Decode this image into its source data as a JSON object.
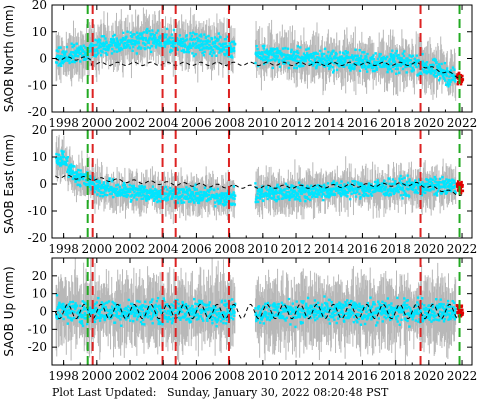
{
  "footer": {
    "label": "Plot Last Updated:",
    "timestamp": "Sunday, January 30, 2022 08:20:48 PST"
  },
  "colors": {
    "data": "#00e5ff",
    "error_bars": "#b8b8b8",
    "model": "#000000",
    "recent": "#e00000",
    "red_lines": "#dd2222",
    "green_lines": "#22aa22"
  },
  "chart_data": [
    {
      "type": "scatter",
      "ylabel": "SAOB North (mm)",
      "xlim": [
        1997.3,
        2022.6
      ],
      "ylim": [
        -20,
        20
      ],
      "yticks": [
        -20,
        -10,
        0,
        10,
        20
      ],
      "xticks": [
        "1998",
        "2000",
        "2002",
        "2004",
        "2006",
        "2008",
        "2010",
        "2012",
        "2014",
        "2016",
        "2018",
        "2020",
        "2022"
      ],
      "model_trend": [
        [
          1997.5,
          0
        ],
        [
          1999.6,
          0
        ],
        [
          1999.7,
          -2
        ],
        [
          2008.3,
          -2
        ],
        [
          2019.3,
          -2
        ],
        [
          2022.0,
          -7
        ]
      ],
      "data_trend": [
        [
          1998.0,
          0
        ],
        [
          1999.6,
          3
        ],
        [
          2000.5,
          5
        ],
        [
          2003.0,
          7
        ],
        [
          2005.0,
          6
        ],
        [
          2007.0,
          5
        ],
        [
          2008.3,
          4
        ],
        [
          2009.5,
          2
        ],
        [
          2012.0,
          0
        ],
        [
          2016.0,
          -1
        ],
        [
          2019.3,
          -2
        ],
        [
          2022.0,
          -8
        ]
      ],
      "scatter": 3.5,
      "error_spread": 6,
      "red_lines": [
        1999.75,
        2003.96,
        2004.75,
        2007.96,
        2019.5
      ],
      "green_lines": [
        1999.45,
        2021.85
      ]
    },
    {
      "type": "scatter",
      "ylabel": "SAOB East (mm)",
      "xlim": [
        1997.3,
        2022.6
      ],
      "ylim": [
        -20,
        20
      ],
      "yticks": [
        -20,
        -10,
        0,
        10,
        20
      ],
      "xticks": [
        "1998",
        "2000",
        "2002",
        "2004",
        "2006",
        "2008",
        "2010",
        "2012",
        "2014",
        "2016",
        "2018",
        "2020",
        "2022"
      ],
      "model_trend": [
        [
          1997.5,
          3
        ],
        [
          1999.6,
          2
        ],
        [
          2002.0,
          1
        ],
        [
          2005.0,
          0
        ],
        [
          2008.3,
          -1
        ],
        [
          2013.0,
          -1
        ],
        [
          2019.3,
          0
        ],
        [
          2022.0,
          -4
        ]
      ],
      "data_trend": [
        [
          1998.0,
          9
        ],
        [
          1998.6,
          4
        ],
        [
          2000.0,
          -1
        ],
        [
          2002.0,
          -3
        ],
        [
          2005.0,
          -4
        ],
        [
          2008.3,
          -5
        ],
        [
          2009.3,
          -4
        ],
        [
          2012.0,
          -3
        ],
        [
          2015.0,
          -2
        ],
        [
          2019.3,
          -1
        ],
        [
          2022.0,
          -1
        ]
      ],
      "scatter": 3,
      "error_spread": 5,
      "red_lines": [
        1999.75,
        2003.96,
        2004.75,
        2007.96,
        2019.5
      ],
      "green_lines": [
        1999.45,
        2021.85
      ]
    },
    {
      "type": "scatter",
      "ylabel": "SAOB Up (mm)",
      "xlim": [
        1997.3,
        2022.6
      ],
      "ylim": [
        -30,
        30
      ],
      "yticks": [
        -20,
        -10,
        0,
        10,
        20
      ],
      "xticks": [
        "1998",
        "2000",
        "2002",
        "2004",
        "2006",
        "2008",
        "2010",
        "2012",
        "2014",
        "2016",
        "2018",
        "2020",
        "2022"
      ],
      "model_trend": [
        [
          1997.5,
          0
        ],
        [
          2022.0,
          0
        ]
      ],
      "data_trend": [
        [
          1998.0,
          0
        ],
        [
          2022.0,
          0
        ]
      ],
      "scatter": 6,
      "error_spread": 14,
      "red_lines": [
        1999.75,
        2003.96,
        2004.75,
        2007.96,
        2019.5
      ],
      "green_lines": [
        1999.45,
        2021.85
      ]
    }
  ]
}
